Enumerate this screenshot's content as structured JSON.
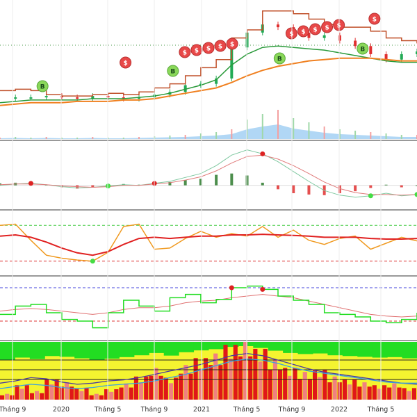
{
  "x_axis": {
    "tick_labels": [
      "Tháng 9",
      "2020",
      "Tháng 5",
      "Tháng 9",
      "2021",
      "Tháng 5",
      "Tháng 9",
      "2022",
      "Tháng 5"
    ]
  },
  "markers": {
    "buy_label": "B",
    "sell_label": "$"
  },
  "colors": {
    "price_up": "#22aa55",
    "price_down": "#e03030",
    "ma_orange": "#f08020",
    "ma_green": "#2a9a3a",
    "trail_red": "#c0502a",
    "volume_blue": "#9ecdf2",
    "oscillator_red": "#e02020",
    "oscillator_orange": "#f09a20",
    "rsi_green": "#22dd22",
    "macd_green": "#2d7a2d",
    "buy_marker": "#8ad85a",
    "sell_marker": "#e84848",
    "yellow_fill": "#f4f430",
    "top_green": "#22dd22"
  },
  "chart_data": [
    {
      "type": "line",
      "panel": "price",
      "x_ticks": [
        "Tháng 9",
        "2020",
        "Tháng 5",
        "Tháng 9",
        "2021",
        "Tháng 5",
        "Tháng 9",
        "2022",
        "Tháng 5"
      ],
      "series": [
        {
          "values": [
            17,
            18,
            18,
            19,
            18,
            17,
            19,
            18,
            17,
            18,
            20,
            22,
            27,
            28,
            32,
            55,
            66,
            72,
            70,
            66,
            62,
            64,
            60,
            56,
            50,
            46,
            50,
            52
          ]
        },
        {
          "values": [
            14,
            15,
            16,
            16,
            16,
            16,
            17,
            17,
            17,
            18,
            19,
            21,
            24,
            27,
            31,
            42,
            50,
            55,
            56,
            55,
            54,
            53,
            51,
            49,
            47,
            45,
            44,
            44
          ]
        },
        {
          "values": [
            12,
            13,
            14,
            14,
            14,
            15,
            15,
            15,
            16,
            16,
            17,
            19,
            21,
            23,
            25,
            29,
            34,
            38,
            41,
            43,
            45,
            46,
            47,
            47,
            47,
            46,
            45,
            45
          ]
        },
        {
          "values": [
            23,
            24,
            23,
            20,
            19,
            19,
            20,
            21,
            20,
            22,
            25,
            28,
            34,
            40,
            46,
            62,
            68,
            82,
            82,
            80,
            76,
            72,
            70,
            70,
            67,
            62,
            60,
            58
          ]
        }
      ],
      "signals": [
        {
          "kind": "buy",
          "index": 3
        },
        {
          "kind": "sell",
          "index": 10
        },
        {
          "kind": "buy",
          "index": 14
        },
        {
          "kind": "sell",
          "index": 15
        },
        {
          "kind": "sell",
          "index": 16
        },
        {
          "kind": "sell",
          "index": 17
        },
        {
          "kind": "sell",
          "index": 18
        },
        {
          "kind": "sell",
          "index": 19
        },
        {
          "kind": "buy",
          "index": 23
        },
        {
          "kind": "sell",
          "index": 24
        },
        {
          "kind": "sell",
          "index": 25
        },
        {
          "kind": "sell",
          "index": 26
        },
        {
          "kind": "sell",
          "index": 27
        },
        {
          "kind": "sell",
          "index": 28
        },
        {
          "kind": "buy",
          "index": 30
        },
        {
          "kind": "sell",
          "index": 31
        }
      ]
    },
    {
      "type": "line",
      "panel": "macd",
      "series": [
        {
          "values": [
            0.0,
            0.2,
            0.3,
            0.1,
            -0.2,
            -0.4,
            -0.3,
            -0.1,
            0.1,
            0.0,
            0.3,
            0.6,
            1.2,
            1.8,
            3.0,
            4.6,
            5.4,
            4.8,
            3.6,
            2.1,
            0.6,
            -0.8,
            -1.5,
            -1.8,
            -1.6,
            -1.2,
            -1.6,
            -1.4
          ]
        },
        {
          "values": [
            0.1,
            0.2,
            0.2,
            0.1,
            -0.1,
            -0.2,
            -0.3,
            -0.2,
            0.0,
            0.0,
            0.2,
            0.4,
            0.8,
            1.3,
            2.2,
            3.4,
            4.4,
            4.6,
            4.0,
            3.0,
            1.8,
            0.5,
            -0.5,
            -1.1,
            -1.4,
            -1.4,
            -1.5,
            -1.4
          ]
        }
      ],
      "histogram": [
        0.3,
        0.4,
        0.5,
        0.1,
        -0.3,
        -0.5,
        -0.3,
        -0.1,
        0.2,
        0.1,
        0.3,
        0.5,
        0.8,
        1.0,
        1.6,
        1.8,
        1.5,
        0.4,
        -0.6,
        -1.2,
        -1.4,
        -1.5,
        -1.2,
        -0.9,
        -0.4,
        0.1,
        -0.3,
        0.0
      ]
    },
    {
      "type": "line",
      "panel": "oscillator",
      "series": [
        {
          "values": [
            80,
            82,
            55,
            30,
            25,
            22,
            20,
            35,
            78,
            82,
            40,
            42,
            58,
            70,
            60,
            66,
            62,
            78,
            60,
            72,
            55,
            48,
            58,
            62,
            40,
            50,
            60,
            54
          ]
        },
        {
          "values": [
            62,
            64,
            60,
            52,
            42,
            34,
            30,
            36,
            48,
            58,
            60,
            58,
            60,
            62,
            62,
            64,
            64,
            65,
            64,
            63,
            62,
            60,
            60,
            60,
            58,
            57,
            57,
            58
          ]
        }
      ],
      "levels": [
        80,
        20
      ]
    },
    {
      "type": "line",
      "panel": "rsi",
      "series": [
        {
          "values": [
            38,
            48,
            50,
            40,
            32,
            30,
            22,
            40,
            55,
            48,
            42,
            58,
            62,
            52,
            56,
            70,
            72,
            68,
            60,
            55,
            50,
            40,
            38,
            35,
            30,
            28,
            32,
            40
          ]
        },
        {
          "values": [
            42,
            44,
            45,
            44,
            42,
            40,
            38,
            40,
            44,
            46,
            46,
            48,
            52,
            54,
            55,
            58,
            60,
            62,
            60,
            58,
            54,
            50,
            46,
            42,
            38,
            36,
            35,
            36
          ]
        }
      ],
      "levels": [
        70,
        30
      ]
    },
    {
      "type": "bar",
      "panel": "bottom",
      "values": [
        10,
        25,
        15,
        35,
        30,
        20,
        10,
        18,
        28,
        40,
        55,
        38,
        60,
        72,
        80,
        95,
        100,
        88,
        70,
        55,
        48,
        52,
        40,
        35,
        30,
        25,
        28,
        20
      ],
      "series": [
        {
          "values": [
            30,
            34,
            40,
            38,
            32,
            28,
            30,
            34,
            36,
            40,
            46,
            52,
            58,
            64,
            72,
            80,
            84,
            80,
            72,
            64,
            56,
            50,
            46,
            42,
            38,
            34,
            30,
            28
          ]
        },
        {
          "values": [
            20,
            24,
            28,
            26,
            22,
            20,
            22,
            26,
            28,
            30,
            34,
            40,
            46,
            54,
            62,
            70,
            74,
            72,
            66,
            58,
            52,
            48,
            44,
            40,
            36,
            32,
            30,
            30
          ]
        }
      ]
    }
  ]
}
